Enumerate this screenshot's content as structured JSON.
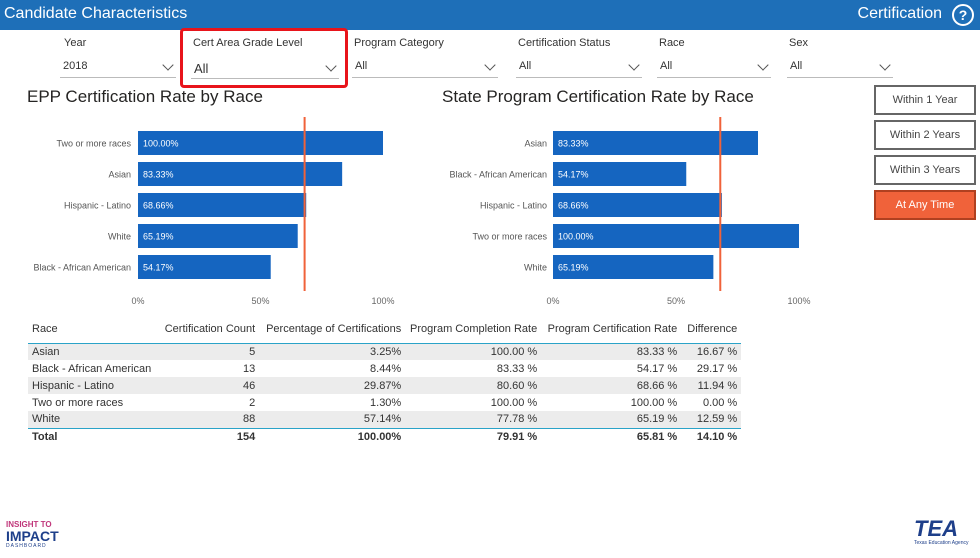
{
  "header": {
    "title": "Candidate Characteristics",
    "section": "Certification",
    "help_icon": "?"
  },
  "filters": [
    {
      "label": "Year",
      "value": "2018"
    },
    {
      "label": "Cert Area Grade Level",
      "value": "All"
    },
    {
      "label": "Program Category",
      "value": "All"
    },
    {
      "label": "Certification Status",
      "value": "All"
    },
    {
      "label": "Race",
      "value": "All"
    },
    {
      "label": "Sex",
      "value": "All"
    }
  ],
  "time_buttons": [
    {
      "label": "Within 1 Year",
      "active": false
    },
    {
      "label": "Within 2 Years",
      "active": false
    },
    {
      "label": "Within 3 Years",
      "active": false
    },
    {
      "label": "At Any Time",
      "active": true
    }
  ],
  "colors": {
    "bar": "#1565c0",
    "reference_line": "#f0623a",
    "header_bg": "#1e6fb8",
    "accent": "#f0623a"
  },
  "chart_data": [
    {
      "type": "bar",
      "orientation": "horizontal",
      "title": "EPP Certification Rate by Race",
      "categories": [
        "Two or more races",
        "Asian",
        "Hispanic - Latino",
        "White",
        "Black - African American"
      ],
      "values": [
        100.0,
        83.33,
        68.66,
        65.19,
        54.17
      ],
      "labels": [
        "100.00%",
        "83.33%",
        "68.66%",
        "65.19%",
        "54.17%"
      ],
      "x_ticks": [
        "0%",
        "50%",
        "100%"
      ],
      "xlim": [
        0,
        100
      ],
      "reference_line": 68
    },
    {
      "type": "bar",
      "orientation": "horizontal",
      "title": "State Program Certification Rate by Race",
      "categories": [
        "Asian",
        "Black - African American",
        "Hispanic - Latino",
        "Two or more races",
        "White"
      ],
      "values": [
        83.33,
        54.17,
        68.66,
        100.0,
        65.19
      ],
      "labels": [
        "83.33%",
        "54.17%",
        "68.66%",
        "100.00%",
        "65.19%"
      ],
      "x_ticks": [
        "0%",
        "50%",
        "100%"
      ],
      "xlim": [
        0,
        100
      ],
      "reference_line": 68
    }
  ],
  "table": {
    "headers": [
      "Race",
      "Certification Count",
      "Percentage of Certifications",
      "Program Completion Rate",
      "Program Certification Rate",
      "Difference"
    ],
    "rows": [
      [
        "Asian",
        "5",
        "3.25%",
        "100.00 %",
        "83.33 %",
        "16.67 %"
      ],
      [
        "Black - African American",
        "13",
        "8.44%",
        "83.33 %",
        "54.17 %",
        "29.17 %"
      ],
      [
        "Hispanic - Latino",
        "46",
        "29.87%",
        "80.60 %",
        "68.66 %",
        "11.94 %"
      ],
      [
        "Two or more races",
        "2",
        "1.30%",
        "100.00 %",
        "100.00 %",
        "0.00 %"
      ],
      [
        "White",
        "88",
        "57.14%",
        "77.78 %",
        "65.19 %",
        "12.59 %"
      ]
    ],
    "total": [
      "Total",
      "154",
      "100.00%",
      "79.91 %",
      "65.81 %",
      "14.10 %"
    ]
  },
  "logos": {
    "left": {
      "line1": "INSIGHT TO",
      "line2": "IMPACT",
      "line3": "DASHBOARD"
    },
    "right": {
      "line1": "TEA",
      "line2": "Texas Education Agency"
    }
  }
}
